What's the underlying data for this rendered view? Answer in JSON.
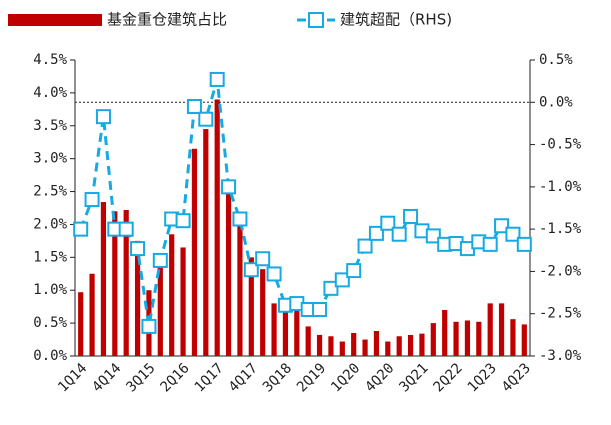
{
  "chart_data": {
    "type": "bar_line",
    "categories": [
      "1Q14",
      null,
      null,
      "4Q14",
      null,
      null,
      "3Q15",
      null,
      null,
      "2Q16",
      null,
      null,
      "1Q17",
      null,
      null,
      "4Q17",
      null,
      null,
      "3Q18",
      null,
      null,
      "2Q19",
      null,
      null,
      "1Q20",
      null,
      null,
      "4Q20",
      null,
      null,
      "3Q21",
      null,
      null,
      "2Q22",
      null,
      null,
      "1Q23",
      null,
      null,
      "4Q23"
    ],
    "series": [
      {
        "name": "基金重仓建筑占比",
        "color": "#c00000",
        "kind": "bar",
        "axis": "y",
        "values": [
          0.97,
          1.25,
          2.34,
          2.2,
          2.22,
          1.75,
          1.0,
          1.35,
          1.85,
          1.65,
          3.15,
          3.45,
          3.9,
          2.6,
          2.05,
          1.5,
          1.32,
          0.8,
          0.7,
          0.72,
          0.45,
          0.32,
          0.3,
          0.22,
          0.35,
          0.25,
          0.38,
          0.22,
          0.3,
          0.32,
          0.34,
          0.5,
          0.7,
          0.52,
          0.54,
          0.52,
          0.8,
          0.8,
          0.56,
          0.48
        ]
      },
      {
        "name": "建筑超配（RHS)",
        "color": "#17a9e1",
        "kind": "line",
        "axis": "y2",
        "values": [
          -1.5,
          -1.15,
          -0.17,
          -1.5,
          -1.5,
          -1.73,
          -2.65,
          -1.87,
          -1.38,
          -1.4,
          -0.05,
          -0.2,
          0.27,
          -1.0,
          -1.38,
          -1.98,
          -1.85,
          -2.03,
          -2.4,
          -2.38,
          -2.45,
          -2.45,
          -2.2,
          -2.1,
          -1.99,
          -1.7,
          -1.55,
          -1.43,
          -1.56,
          -1.35,
          -1.52,
          -1.58,
          -1.68,
          -1.67,
          -1.73,
          -1.65,
          -1.68,
          -1.46,
          -1.56,
          -1.68
        ]
      }
    ],
    "ylim": [
      0,
      4.5
    ],
    "yticks": [
      {
        "value": 0,
        "label": "0.0%"
      },
      {
        "value": 0.5,
        "label": "0.5%"
      },
      {
        "value": 1,
        "label": "1.0%"
      },
      {
        "value": 1.5,
        "label": "1.5%"
      },
      {
        "value": 2,
        "label": "2.0%"
      },
      {
        "value": 2.5,
        "label": "2.5%"
      },
      {
        "value": 3,
        "label": "3.0%"
      },
      {
        "value": 3.5,
        "label": "3.5%"
      },
      {
        "value": 4,
        "label": "4.0%"
      },
      {
        "value": 4.5,
        "label": "4.5%"
      }
    ],
    "y2lim": [
      -3,
      0.5
    ],
    "y2ticks": [
      {
        "value": -3,
        "label": "-3.0%"
      },
      {
        "value": -2.5,
        "label": "-2.5%"
      },
      {
        "value": -2,
        "label": "-2.0%"
      },
      {
        "value": -1.5,
        "label": "-1.5%"
      },
      {
        "value": -1,
        "label": "-1.0%"
      },
      {
        "value": -0.5,
        "label": "-0.5%"
      },
      {
        "value": 0,
        "label": "0.0%"
      },
      {
        "value": 0.5,
        "label": "0.5%"
      }
    ],
    "y2_reference_line": 0,
    "legend": "top",
    "grid": false
  }
}
